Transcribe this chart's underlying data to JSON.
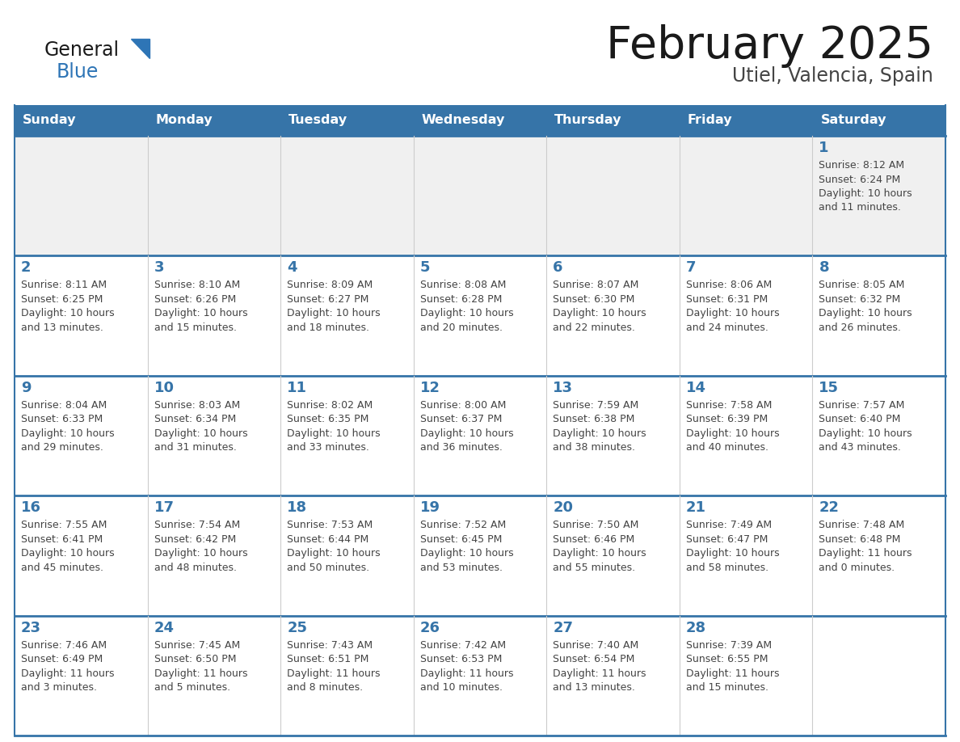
{
  "title": "February 2025",
  "subtitle": "Utiel, Valencia, Spain",
  "header_bg": "#3674a8",
  "header_text": "#FFFFFF",
  "header_days": [
    "Sunday",
    "Monday",
    "Tuesday",
    "Wednesday",
    "Thursday",
    "Friday",
    "Saturday"
  ],
  "row_separator_color": "#3674a8",
  "cell_border_color": "#cccccc",
  "week1_bg": "#f0f0f0",
  "other_row_bg": "#ffffff",
  "title_color": "#1a1a1a",
  "subtitle_color": "#444444",
  "day_num_color": "#3674a8",
  "cell_text_color": "#444444",
  "logo_general_color": "#1a1a1a",
  "logo_blue_color": "#2E75B6",
  "calendar": [
    [
      {
        "day": null,
        "info": ""
      },
      {
        "day": null,
        "info": ""
      },
      {
        "day": null,
        "info": ""
      },
      {
        "day": null,
        "info": ""
      },
      {
        "day": null,
        "info": ""
      },
      {
        "day": null,
        "info": ""
      },
      {
        "day": 1,
        "info": "Sunrise: 8:12 AM\nSunset: 6:24 PM\nDaylight: 10 hours\nand 11 minutes."
      }
    ],
    [
      {
        "day": 2,
        "info": "Sunrise: 8:11 AM\nSunset: 6:25 PM\nDaylight: 10 hours\nand 13 minutes."
      },
      {
        "day": 3,
        "info": "Sunrise: 8:10 AM\nSunset: 6:26 PM\nDaylight: 10 hours\nand 15 minutes."
      },
      {
        "day": 4,
        "info": "Sunrise: 8:09 AM\nSunset: 6:27 PM\nDaylight: 10 hours\nand 18 minutes."
      },
      {
        "day": 5,
        "info": "Sunrise: 8:08 AM\nSunset: 6:28 PM\nDaylight: 10 hours\nand 20 minutes."
      },
      {
        "day": 6,
        "info": "Sunrise: 8:07 AM\nSunset: 6:30 PM\nDaylight: 10 hours\nand 22 minutes."
      },
      {
        "day": 7,
        "info": "Sunrise: 8:06 AM\nSunset: 6:31 PM\nDaylight: 10 hours\nand 24 minutes."
      },
      {
        "day": 8,
        "info": "Sunrise: 8:05 AM\nSunset: 6:32 PM\nDaylight: 10 hours\nand 26 minutes."
      }
    ],
    [
      {
        "day": 9,
        "info": "Sunrise: 8:04 AM\nSunset: 6:33 PM\nDaylight: 10 hours\nand 29 minutes."
      },
      {
        "day": 10,
        "info": "Sunrise: 8:03 AM\nSunset: 6:34 PM\nDaylight: 10 hours\nand 31 minutes."
      },
      {
        "day": 11,
        "info": "Sunrise: 8:02 AM\nSunset: 6:35 PM\nDaylight: 10 hours\nand 33 minutes."
      },
      {
        "day": 12,
        "info": "Sunrise: 8:00 AM\nSunset: 6:37 PM\nDaylight: 10 hours\nand 36 minutes."
      },
      {
        "day": 13,
        "info": "Sunrise: 7:59 AM\nSunset: 6:38 PM\nDaylight: 10 hours\nand 38 minutes."
      },
      {
        "day": 14,
        "info": "Sunrise: 7:58 AM\nSunset: 6:39 PM\nDaylight: 10 hours\nand 40 minutes."
      },
      {
        "day": 15,
        "info": "Sunrise: 7:57 AM\nSunset: 6:40 PM\nDaylight: 10 hours\nand 43 minutes."
      }
    ],
    [
      {
        "day": 16,
        "info": "Sunrise: 7:55 AM\nSunset: 6:41 PM\nDaylight: 10 hours\nand 45 minutes."
      },
      {
        "day": 17,
        "info": "Sunrise: 7:54 AM\nSunset: 6:42 PM\nDaylight: 10 hours\nand 48 minutes."
      },
      {
        "day": 18,
        "info": "Sunrise: 7:53 AM\nSunset: 6:44 PM\nDaylight: 10 hours\nand 50 minutes."
      },
      {
        "day": 19,
        "info": "Sunrise: 7:52 AM\nSunset: 6:45 PM\nDaylight: 10 hours\nand 53 minutes."
      },
      {
        "day": 20,
        "info": "Sunrise: 7:50 AM\nSunset: 6:46 PM\nDaylight: 10 hours\nand 55 minutes."
      },
      {
        "day": 21,
        "info": "Sunrise: 7:49 AM\nSunset: 6:47 PM\nDaylight: 10 hours\nand 58 minutes."
      },
      {
        "day": 22,
        "info": "Sunrise: 7:48 AM\nSunset: 6:48 PM\nDaylight: 11 hours\nand 0 minutes."
      }
    ],
    [
      {
        "day": 23,
        "info": "Sunrise: 7:46 AM\nSunset: 6:49 PM\nDaylight: 11 hours\nand 3 minutes."
      },
      {
        "day": 24,
        "info": "Sunrise: 7:45 AM\nSunset: 6:50 PM\nDaylight: 11 hours\nand 5 minutes."
      },
      {
        "day": 25,
        "info": "Sunrise: 7:43 AM\nSunset: 6:51 PM\nDaylight: 11 hours\nand 8 minutes."
      },
      {
        "day": 26,
        "info": "Sunrise: 7:42 AM\nSunset: 6:53 PM\nDaylight: 11 hours\nand 10 minutes."
      },
      {
        "day": 27,
        "info": "Sunrise: 7:40 AM\nSunset: 6:54 PM\nDaylight: 11 hours\nand 13 minutes."
      },
      {
        "day": 28,
        "info": "Sunrise: 7:39 AM\nSunset: 6:55 PM\nDaylight: 11 hours\nand 15 minutes."
      },
      {
        "day": null,
        "info": ""
      }
    ]
  ]
}
